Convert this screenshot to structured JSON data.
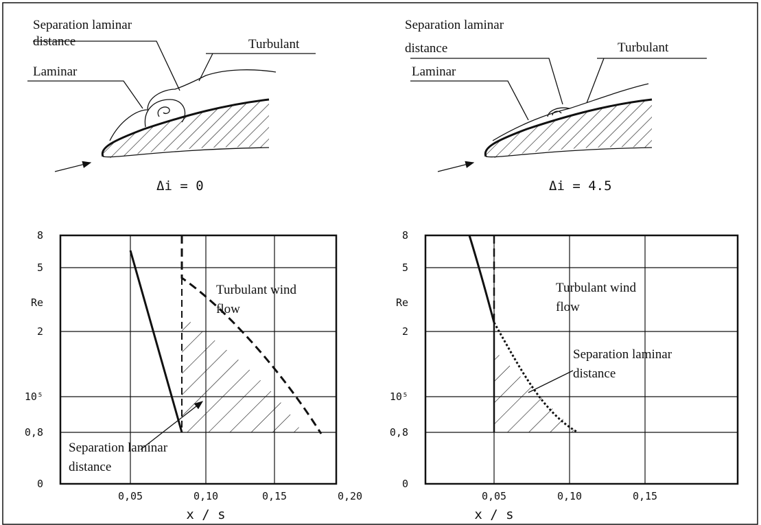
{
  "panels": [
    {
      "sketch": {
        "separation_label": [
          "Separation laminar",
          "distance"
        ],
        "turbulent_label": "Turbulant",
        "laminar_label": "Laminar",
        "incidence": "Δi = 0"
      },
      "chart": {
        "y_label": "Re",
        "y_ticks": [
          "8",
          "5",
          "2",
          "10⁵",
          "0,8",
          "0"
        ],
        "x_ticks": [
          "0,05",
          "0,10",
          "0,15",
          "0,20"
        ],
        "x_label": "x / s",
        "turbulent_label": [
          "Turbulant wind",
          "flow"
        ],
        "separation_label": [
          "Separation laminar",
          "distance"
        ]
      }
    },
    {
      "sketch": {
        "separation_label": [
          "Separation laminar",
          "distance"
        ],
        "turbulent_label": "Turbulant",
        "laminar_label": "Laminar",
        "incidence": "Δi = 4.5"
      },
      "chart": {
        "y_label": "Re",
        "y_ticks": [
          "8",
          "5",
          "2",
          "10⁵",
          "0,8",
          "0"
        ],
        "x_ticks": [
          "0,05",
          "0,10",
          "0,15"
        ],
        "x_label": "x / s",
        "turbulent_label": [
          "Turbulant wind",
          "flow"
        ],
        "separation_label": [
          "Separation laminar",
          "distance"
        ]
      }
    }
  ]
}
